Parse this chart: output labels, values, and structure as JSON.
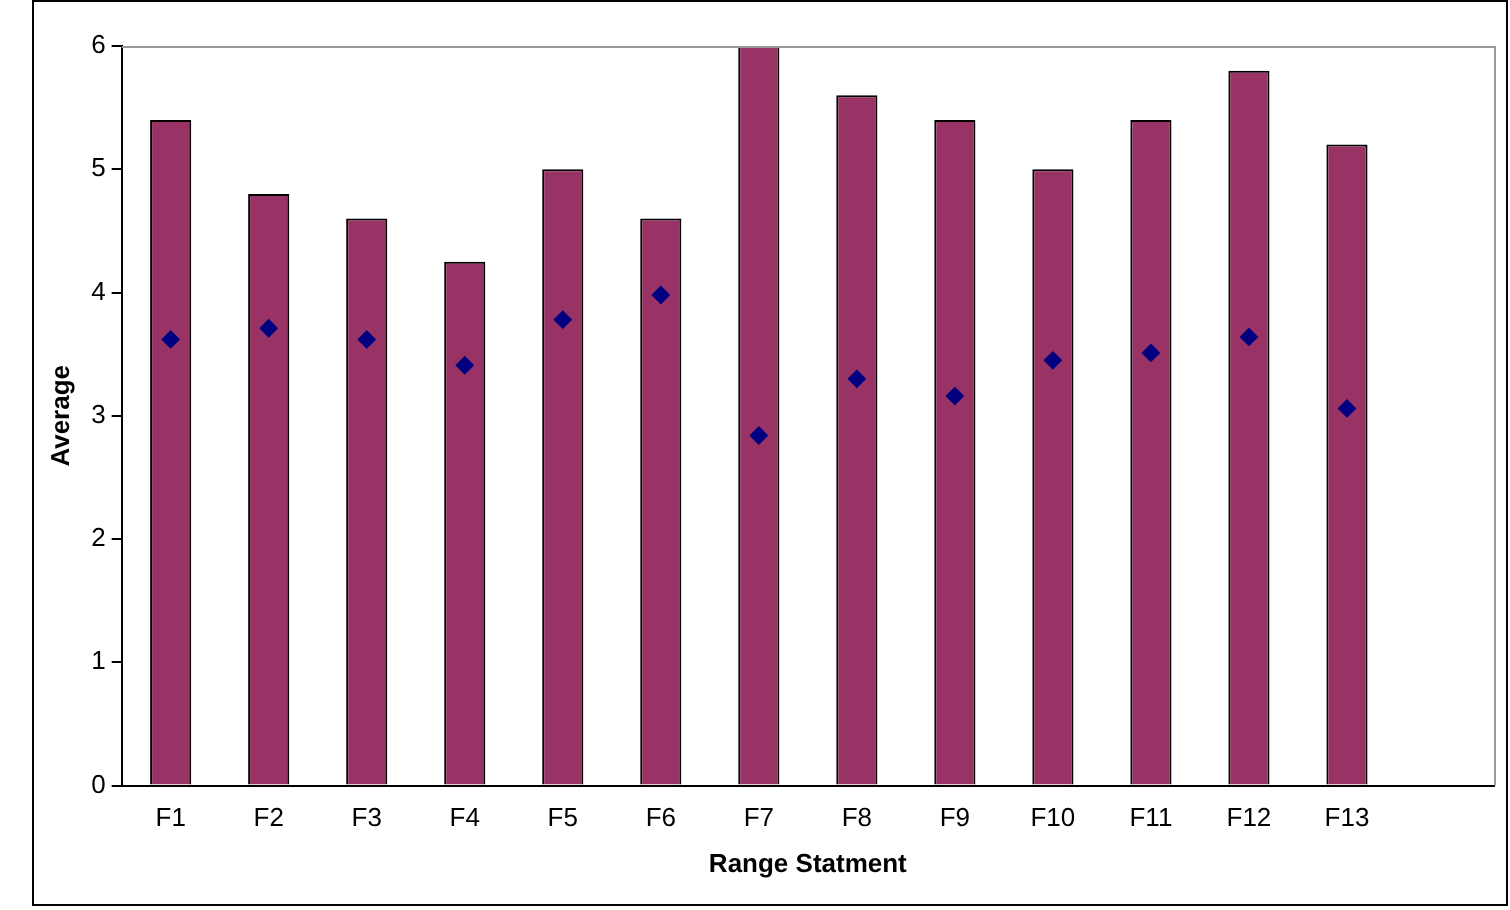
{
  "chart_data": {
    "type": "bar",
    "xlabel": "Range Statment",
    "ylabel": "Average",
    "categories": [
      "F1",
      "F2",
      "F3",
      "F4",
      "F5",
      "F6",
      "F7",
      "F8",
      "F9",
      "F10",
      "F11",
      "F12",
      "F13",
      null
    ],
    "series": [
      {
        "color": "#993366",
        "values": [
          5.4,
          4.8,
          4.6,
          4.25,
          5.0,
          4.6,
          6.0,
          5.6,
          5.4,
          5.0,
          5.4,
          5.8,
          5.2,
          null
        ]
      },
      {
        "type": "scatter",
        "color": "#000080",
        "marker": "diamond",
        "x": [
          "F1",
          "F2",
          "F3",
          "F4",
          "F5",
          "F6",
          "F7",
          "F8",
          "F9",
          "F10",
          "F11",
          "F12",
          "F13"
        ],
        "values": [
          3.62,
          3.71,
          3.62,
          3.41,
          3.78,
          3.98,
          2.84,
          3.3,
          3.16,
          3.45,
          3.51,
          3.64,
          3.06
        ]
      }
    ],
    "ylim": [
      0,
      6
    ],
    "yticks": [
      0,
      1,
      2,
      3,
      4,
      5,
      6
    ],
    "grid": false,
    "legend": false
  }
}
